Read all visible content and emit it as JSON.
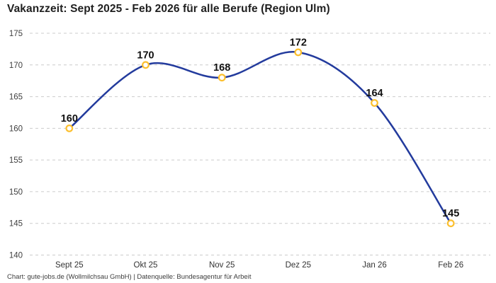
{
  "header": {
    "title": "Vakanzzeit: Sept 2025 - Feb 2026 für alle Berufe (Region Ulm)"
  },
  "footer": {
    "credit": "Chart: gute-jobs.de (Wollmilchsau GmbH) | Datenquelle: Bundesagentur für Arbeit"
  },
  "chart_data": {
    "type": "line",
    "title": "Vakanzzeit: Sept 2025 - Feb 2026 für alle Berufe (Region Ulm)",
    "categories": [
      "Sept 25",
      "Okt 25",
      "Nov 25",
      "Dez 25",
      "Jan 26",
      "Feb 26"
    ],
    "series": [
      {
        "name": "Vakanzzeit alle Berufe (Region Ulm)",
        "values": [
          160,
          170,
          168,
          172,
          164,
          145
        ]
      }
    ],
    "point_labels": [
      "160",
      "170",
      "168",
      "172",
      "164",
      "145"
    ],
    "xlabel": "",
    "ylabel": "",
    "ylim": [
      140,
      175
    ],
    "yticks": [
      175,
      170,
      165,
      160,
      155,
      150,
      145,
      140
    ],
    "grid": "horizontal-dashed",
    "legend_position": "none",
    "colors": {
      "line": "#233b9d",
      "marker_fill": "#ffffff",
      "marker_stroke": "#fcbf2d",
      "grid": "#cccccc",
      "tick_text": "#3f3f3f",
      "label_text": "#111111",
      "title_text": "#1f1f1f",
      "credit_text": "#3c3c3c",
      "background": "#ffffff"
    }
  }
}
